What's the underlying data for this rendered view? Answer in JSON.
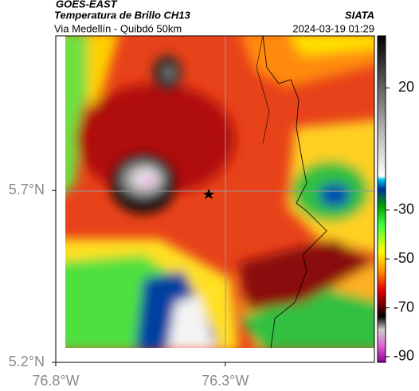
{
  "header": {
    "source": "GOES-EAST",
    "title": "Temperatura de Brillo CH13",
    "subtitle": "Via Medellín - Quibdó 50km",
    "agency": "SIATA",
    "timestamp": "2024-03-19 01:29"
  },
  "map": {
    "lat_range": [
      5.2,
      6.15
    ],
    "lon_range": [
      -76.8,
      -75.86
    ],
    "lat_ticks": [
      {
        "value": 5.7,
        "label": "5.7°N"
      },
      {
        "value": 5.2,
        "label": "5.2°N"
      }
    ],
    "lon_ticks": [
      {
        "value": -76.8,
        "label": "76.8°W"
      },
      {
        "value": -76.3,
        "label": "76.3°W"
      }
    ]
  },
  "colorbar": {
    "range": [
      -92.3,
      41.3
    ],
    "ticks": [
      20,
      -30,
      -50,
      -70,
      -90
    ]
  }
}
